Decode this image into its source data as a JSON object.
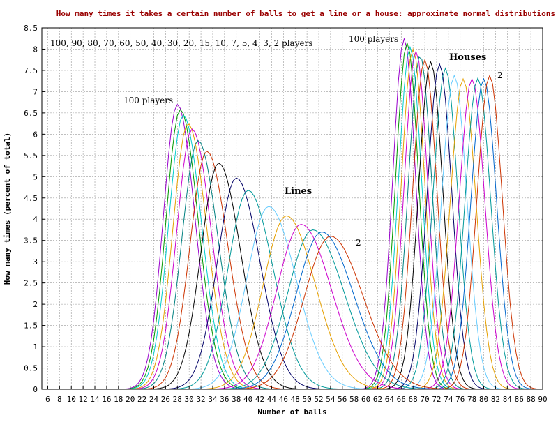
{
  "chart_data": {
    "type": "line",
    "title": "How many times it takes a certain number of balls to get a line or a house: approximate normal distributions",
    "xlabel": "Number of balls",
    "ylabel": "How many times (percent of total)",
    "xlim": [
      5,
      90
    ],
    "ylim": [
      0,
      8.5
    ],
    "x_ticks": [
      6,
      8,
      10,
      12,
      14,
      16,
      18,
      20,
      22,
      24,
      26,
      28,
      30,
      32,
      34,
      36,
      38,
      40,
      42,
      44,
      46,
      48,
      50,
      52,
      54,
      56,
      58,
      60,
      62,
      64,
      66,
      68,
      70,
      72,
      74,
      76,
      78,
      80,
      82,
      84,
      86,
      88,
      90
    ],
    "y_ticks": [
      "0",
      "0.5",
      "1",
      "1.5",
      "2",
      "2.5",
      "3",
      "3.5",
      "4",
      "4.5",
      "5",
      "5.5",
      "6",
      "6.5",
      "7",
      "7.5",
      "8",
      "8.5"
    ],
    "grid": true,
    "legend_text": "100, 90, 80, 70, 60, 50, 40, 30, 20, 15, 10, 7, 5, 4, 3, 2 players",
    "annotations": {
      "lines_100": "100 players",
      "lines_label": "Lines",
      "lines_2": "2",
      "houses_100": "100 players",
      "houses_label": "Houses",
      "houses_2": "2"
    },
    "series": [
      {
        "name": "100",
        "color": "#9900cc",
        "lines": {
          "mean": 28.0,
          "peak": 6.7
        },
        "houses": {
          "mean": 66.5,
          "peak": 8.25
        }
      },
      {
        "name": "90",
        "color": "#009900",
        "lines": {
          "mean": 28.5,
          "peak": 6.58
        },
        "houses": {
          "mean": 67.0,
          "peak": 8.15
        }
      },
      {
        "name": "80",
        "color": "#00cccc",
        "lines": {
          "mean": 29.0,
          "peak": 6.45
        },
        "houses": {
          "mean": 67.5,
          "peak": 8.05
        }
      },
      {
        "name": "70",
        "color": "#e6a000",
        "lines": {
          "mean": 29.8,
          "peak": 6.25
        },
        "houses": {
          "mean": 68.0,
          "peak": 8.0
        }
      },
      {
        "name": "60",
        "color": "#cc00cc",
        "lines": {
          "mean": 30.5,
          "peak": 6.12
        },
        "houses": {
          "mean": 68.5,
          "peak": 7.95
        }
      },
      {
        "name": "50",
        "color": "#008080",
        "lines": {
          "mean": 31.5,
          "peak": 5.85
        },
        "houses": {
          "mean": 69.2,
          "peak": 7.85
        }
      },
      {
        "name": "40",
        "color": "#cc3300",
        "lines": {
          "mean": 33.0,
          "peak": 5.6
        },
        "houses": {
          "mean": 70.0,
          "peak": 7.75
        }
      },
      {
        "name": "30",
        "color": "#000000",
        "lines": {
          "mean": 35.0,
          "peak": 5.32
        },
        "houses": {
          "mean": 71.0,
          "peak": 7.7
        }
      },
      {
        "name": "20",
        "color": "#000066",
        "lines": {
          "mean": 38.0,
          "peak": 4.97
        },
        "houses": {
          "mean": 72.5,
          "peak": 7.65
        }
      },
      {
        "name": "15",
        "color": "#009999",
        "lines": {
          "mean": 40.0,
          "peak": 4.68
        },
        "houses": {
          "mean": 73.5,
          "peak": 7.55
        }
      },
      {
        "name": "10",
        "color": "#66ccff",
        "lines": {
          "mean": 43.5,
          "peak": 4.3
        },
        "houses": {
          "mean": 75.0,
          "peak": 7.38
        }
      },
      {
        "name": "7",
        "color": "#e6a000",
        "lines": {
          "mean": 46.5,
          "peak": 4.08
        },
        "houses": {
          "mean": 76.5,
          "peak": 7.3
        }
      },
      {
        "name": "5",
        "color": "#cc00cc",
        "lines": {
          "mean": 49.0,
          "peak": 3.88
        },
        "houses": {
          "mean": 78.0,
          "peak": 7.3
        }
      },
      {
        "name": "4",
        "color": "#009999",
        "lines": {
          "mean": 51.0,
          "peak": 3.75
        },
        "houses": {
          "mean": 79.0,
          "peak": 7.32
        }
      },
      {
        "name": "3",
        "color": "#0066cc",
        "lines": {
          "mean": 52.5,
          "peak": 3.7
        },
        "houses": {
          "mean": 80.0,
          "peak": 7.3
        }
      },
      {
        "name": "2",
        "color": "#cc3300",
        "lines": {
          "mean": 54.0,
          "peak": 3.6
        },
        "houses": {
          "mean": 81.0,
          "peak": 7.38
        }
      }
    ]
  }
}
